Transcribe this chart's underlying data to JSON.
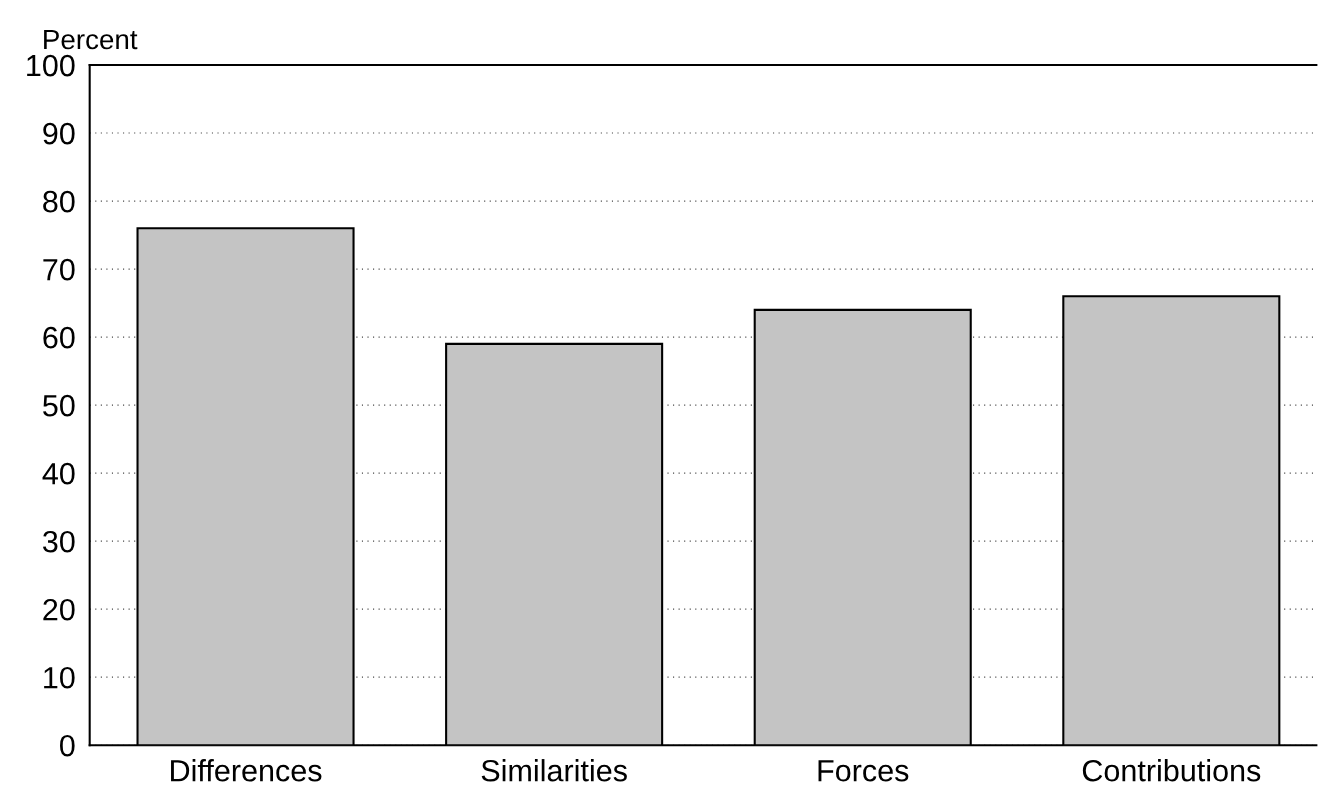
{
  "chart_data": {
    "type": "bar",
    "ylabel": "Percent",
    "categories": [
      "Differences",
      "Similarities",
      "Forces",
      "Contributions"
    ],
    "values": [
      76,
      59,
      64,
      66
    ],
    "color": "#c4c4c4",
    "ylim": [
      0,
      100
    ],
    "yticks": [
      0,
      10,
      20,
      30,
      40,
      50,
      60,
      70,
      80,
      90,
      100
    ],
    "grid": "y",
    "legend": false
  }
}
